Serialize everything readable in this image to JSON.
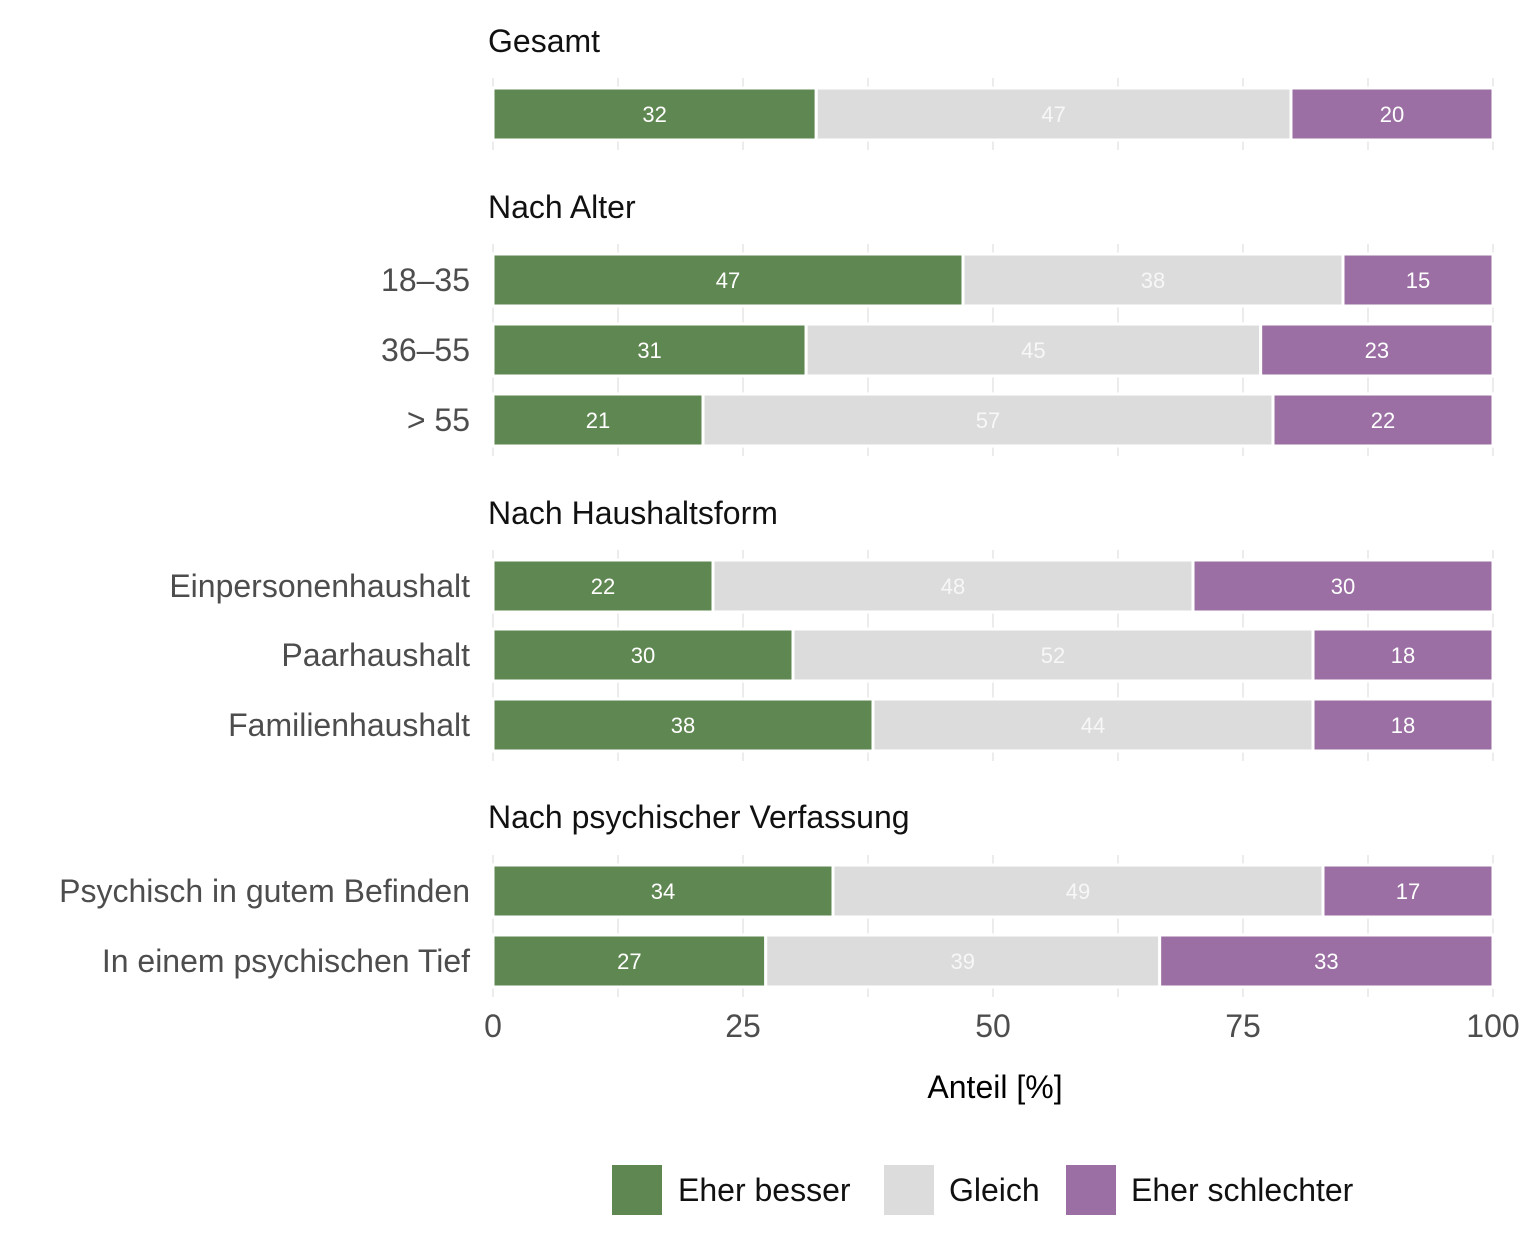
{
  "chart_data": {
    "type": "bar",
    "orientation": "horizontal",
    "stacked": true,
    "xlabel": "Anteil [%]",
    "xlim": [
      0,
      100
    ],
    "xticks": [
      "0",
      "25",
      "50",
      "75",
      "100"
    ],
    "grid": true,
    "legend_placement": "bottom",
    "series": [
      {
        "name": "Eher besser",
        "color": "#5f8751"
      },
      {
        "name": "Gleich",
        "color": "#dcdcdc"
      },
      {
        "name": "Eher schlechter",
        "color": "#9b6fa3"
      }
    ],
    "groups": [
      {
        "title": "Gesamt",
        "rows": [
          {
            "label": "",
            "values": [
              32,
              47,
              20
            ]
          }
        ]
      },
      {
        "title": "Nach Alter",
        "rows": [
          {
            "label": "18–35",
            "values": [
              47,
              38,
              15
            ]
          },
          {
            "label": "36–55",
            "values": [
              31,
              45,
              23
            ]
          },
          {
            "label": "> 55",
            "values": [
              21,
              57,
              22
            ]
          }
        ]
      },
      {
        "title": "Nach Haushaltsform",
        "rows": [
          {
            "label": "Einpersonenhaushalt",
            "values": [
              22,
              48,
              30
            ]
          },
          {
            "label": "Paarhaushalt",
            "values": [
              30,
              52,
              18
            ]
          },
          {
            "label": "Familienhaushalt",
            "values": [
              38,
              44,
              18
            ]
          }
        ]
      },
      {
        "title": "Nach psychischer Verfassung",
        "rows": [
          {
            "label": "Psychisch in gutem Befinden",
            "values": [
              34,
              49,
              17
            ]
          },
          {
            "label": "In einem psychischen Tief",
            "values": [
              27,
              39,
              33
            ]
          }
        ]
      }
    ]
  }
}
